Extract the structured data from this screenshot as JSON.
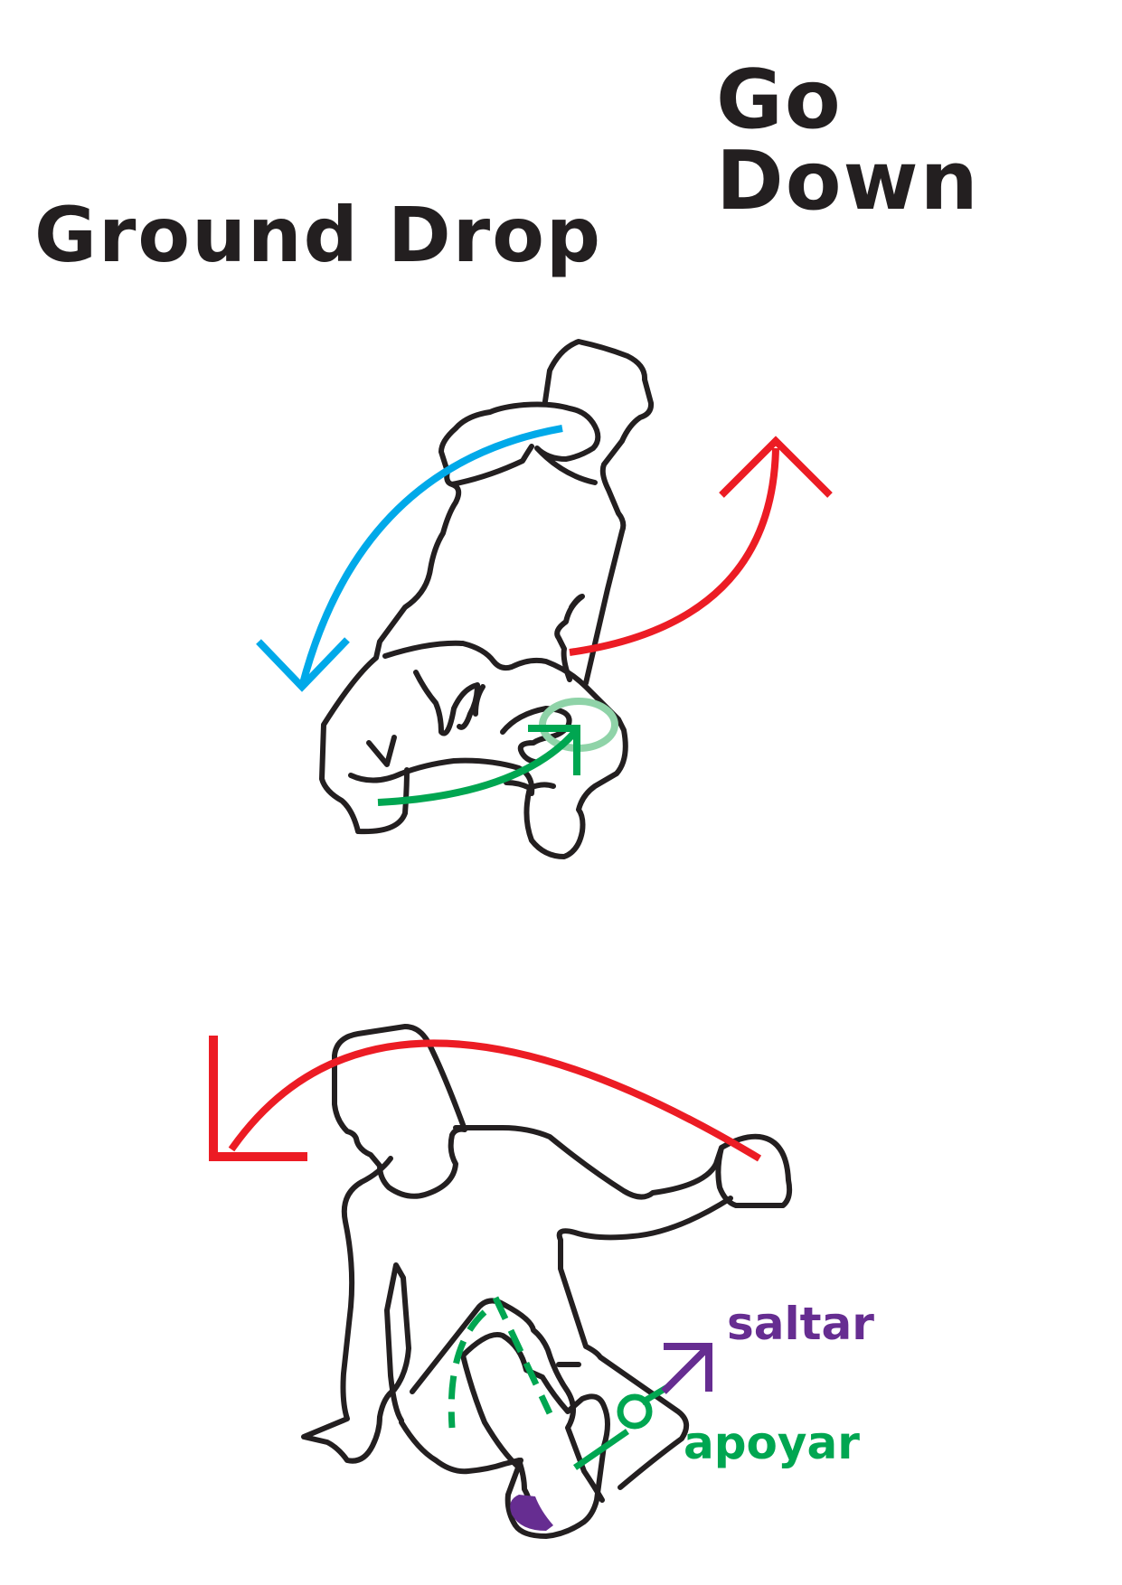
{
  "titles": {
    "go_down": "Go Down",
    "ground_drop": "Ground Drop"
  },
  "labels": {
    "saltar": "saltar",
    "apoyar": "apoyar"
  },
  "colors": {
    "outline": "#231f20",
    "rotation_red": "#ec1c24",
    "rotation_blue": "#00a9e9",
    "support_green": "#00a651",
    "support_green_light": "#8fd3a8",
    "jump_purple": "#662d91"
  },
  "icons": {
    "upper_arrows": [
      "red-rotation-arrow-icon",
      "blue-rotation-arrow-icon",
      "green-rotation-arrow-icon"
    ],
    "lower_arrows": [
      "red-rotation-arrow-icon",
      "purple-jump-arrow-icon",
      "green-support-marker-icon"
    ]
  }
}
